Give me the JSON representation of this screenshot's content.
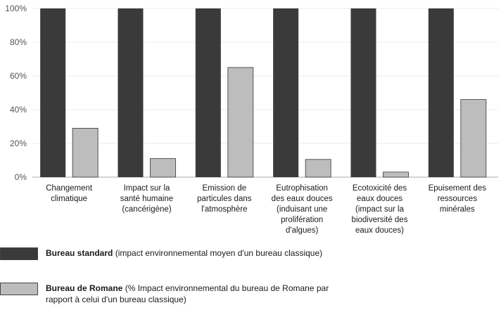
{
  "colors": {
    "standard": "#3a3a3a",
    "romane": "#bdbdbd",
    "axis": "#aaaaaa",
    "grid": "#d8d8d8"
  },
  "chart_data": {
    "type": "bar",
    "ylim": [
      0,
      100
    ],
    "yticks": [
      "0%",
      "20%",
      "40%",
      "60%",
      "80%",
      "100%"
    ],
    "ytick_values": [
      0,
      20,
      40,
      60,
      80,
      100
    ],
    "categories": [
      "Changement\nclimatique",
      "Impact sur la\nsanté humaine\n(cancérigène)",
      "Emission de\nparticules dans\nl'atmosphère",
      "Eutrophisation\ndes eaux douces\n(induisant une\nprolifération\nd'algues)",
      "Ecotoxicité des\neaux douces\n(impact sur la\nbiodiversité des\neaux douces)",
      "Epuisement des\nressources\nminérales"
    ],
    "series": [
      {
        "name": "Bureau standard",
        "values": [
          100,
          100,
          100,
          100,
          100,
          100
        ]
      },
      {
        "name": "Bureau de Romane",
        "values": [
          29,
          11,
          65,
          10.5,
          3,
          46
        ]
      }
    ]
  },
  "legend": [
    {
      "bold": "Bureau standard",
      "text": " (impact environnemental moyen d'un bureau classique)"
    },
    {
      "bold": "Bureau de Romane",
      "text": " (% Impact environnemental du bureau de Romane par rapport à celui d'un bureau classique)"
    }
  ]
}
